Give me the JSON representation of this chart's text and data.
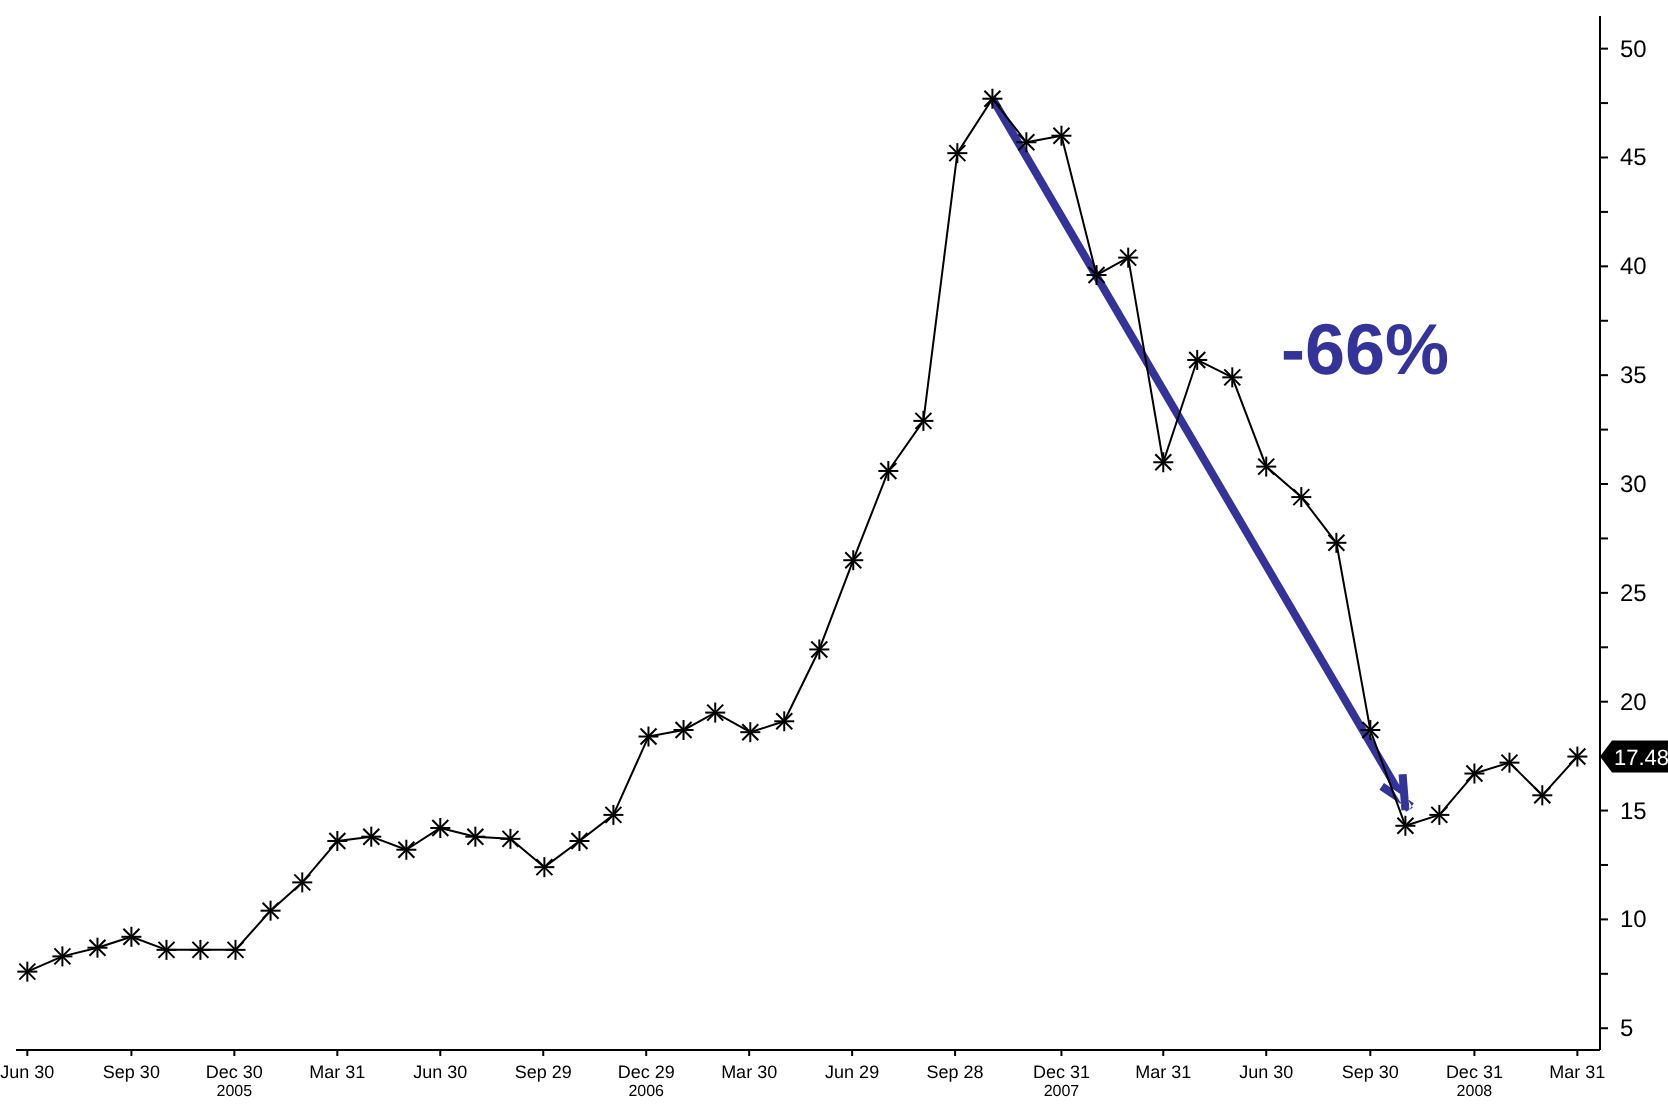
{
  "chart_data": {
    "type": "line",
    "x": [
      "2004-06-30",
      "2004-07-31",
      "2004-08-31",
      "2004-09-30",
      "2004-10-31",
      "2004-11-30",
      "2004-12-31",
      "2005-01-31",
      "2005-02-28",
      "2005-03-31",
      "2005-04-30",
      "2005-05-31",
      "2005-06-30",
      "2005-07-31",
      "2005-08-31",
      "2005-09-30",
      "2005-10-31",
      "2005-11-30",
      "2005-12-31",
      "2006-01-31",
      "2006-02-28",
      "2006-03-31",
      "2006-04-30",
      "2006-05-31",
      "2006-06-30",
      "2006-07-31",
      "2006-08-31",
      "2006-09-30",
      "2006-10-31",
      "2006-11-30",
      "2006-12-31",
      "2007-01-31",
      "2007-02-28",
      "2007-03-31",
      "2007-04-30",
      "2007-05-31",
      "2007-06-30",
      "2007-07-31",
      "2007-08-31",
      "2007-09-30",
      "2007-10-31",
      "2007-11-30",
      "2007-12-31",
      "2008-01-31",
      "2008-02-29",
      "2008-03-31"
    ],
    "series": [
      {
        "color": "#000000",
        "values": [
          7.6,
          8.3,
          8.7,
          9.2,
          8.6,
          8.6,
          8.6,
          10.4,
          11.7,
          13.6,
          13.8,
          13.2,
          14.2,
          13.8,
          13.7,
          12.4,
          13.6,
          14.8,
          18.4,
          18.7,
          19.5,
          18.6,
          19.1,
          22.4,
          26.5,
          30.6,
          32.9,
          45.2,
          47.7,
          45.7,
          46.0,
          39.6,
          40.4,
          31.0,
          35.7,
          34.9,
          30.8,
          29.4,
          27.3,
          18.7,
          14.3,
          14.8,
          16.7,
          17.2,
          15.7,
          17.48
        ],
        "value_labels": [
          null,
          null,
          null,
          null,
          null,
          null,
          null,
          null,
          null,
          null,
          null,
          null,
          null,
          null,
          null,
          null,
          null,
          null,
          null,
          null,
          null,
          null,
          null,
          null,
          null,
          null,
          null,
          null,
          null,
          null,
          null,
          null,
          null,
          null,
          null,
          null,
          null,
          null,
          null,
          null,
          null,
          null,
          null,
          null,
          null,
          "17.48"
        ]
      }
    ],
    "xlim": [
      "2004-06-20",
      "2008-04-20"
    ],
    "xticks": [
      {
        "value": "2004-06-30",
        "label": "Jun 30"
      },
      {
        "value": "2004-09-30",
        "label": "Sep 30"
      },
      {
        "value": "2004-12-30",
        "label": "Dec 30"
      },
      {
        "value": "2005-03-31",
        "label": "Mar 31"
      },
      {
        "value": "2005-06-30",
        "label": "Jun 30"
      },
      {
        "value": "2005-09-29",
        "label": "Sep 29"
      },
      {
        "value": "2005-12-29",
        "label": "Dec 29"
      },
      {
        "value": "2006-03-30",
        "label": "Mar 30"
      },
      {
        "value": "2006-06-29",
        "label": "Jun 29"
      },
      {
        "value": "2006-09-28",
        "label": "Sep 28"
      },
      {
        "value": "2006-12-31",
        "label": "Dec 31"
      },
      {
        "value": "2007-03-31",
        "label": "Mar 31"
      },
      {
        "value": "2007-06-30",
        "label": "Jun 30"
      },
      {
        "value": "2007-09-30",
        "label": "Sep 30"
      },
      {
        "value": "2007-12-31",
        "label": "Dec 31"
      },
      {
        "value": "2008-03-31",
        "label": "Mar 31"
      }
    ],
    "ylim": [
      4,
      51.5
    ],
    "yticks": [
      5,
      {
        "value": 7.5,
        "label": null
      },
      10,
      {
        "value": 12.5,
        "label": null
      },
      15,
      {
        "value": 17.5,
        "label": null
      },
      20,
      {
        "value": 22.5,
        "label": null
      },
      25,
      {
        "value": 27.5,
        "label": null
      },
      30,
      {
        "value": 32.5,
        "label": null
      },
      35,
      {
        "value": 37.5,
        "label": null
      },
      40,
      {
        "value": 42.5,
        "label": null
      },
      45,
      {
        "value": 47.5,
        "label": null
      },
      50
    ],
    "marker": "cross",
    "annotations": [
      "-66%",
      "2005",
      "2006",
      "2007",
      "2008"
    ]
  }
}
